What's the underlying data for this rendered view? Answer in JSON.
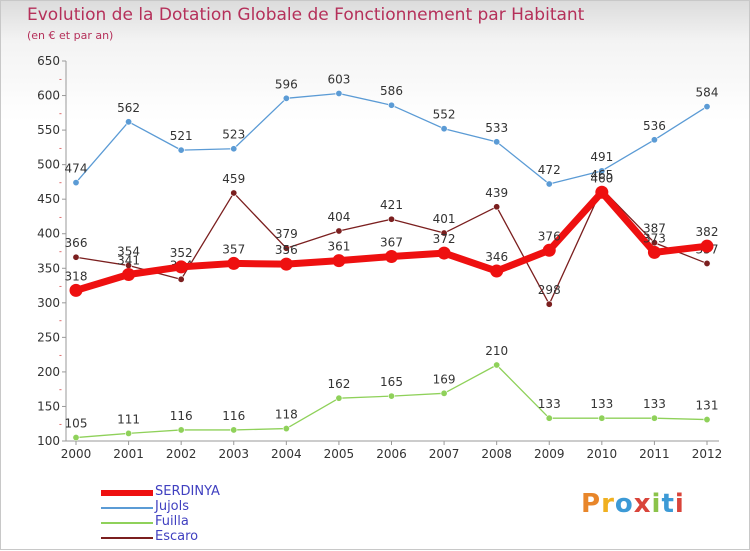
{
  "title": "Evolution de la Dotation Globale de Fonctionnement par Habitant",
  "subtitle": "(en € et par an)",
  "logo": {
    "text": "Proxiti",
    "colors": [
      "#e8862a",
      "#f0b020",
      "#3c9ad6",
      "#d9443a",
      "#8bc34a",
      "#3c9ad6",
      "#d9443a"
    ]
  },
  "chart_data": {
    "type": "line",
    "x": [
      "2000",
      "2001",
      "2002",
      "2003",
      "2004",
      "2005",
      "2006",
      "2007",
      "2008",
      "2009",
      "2010",
      "2011",
      "2012"
    ],
    "ylim": [
      100,
      650
    ],
    "yticks": [
      100,
      150,
      200,
      250,
      300,
      350,
      400,
      450,
      500,
      550,
      600,
      650
    ],
    "grid": false,
    "legend_position": "bottom-left",
    "series": [
      {
        "name": "Jujols",
        "color": "#5b9bd5",
        "values": [
          474,
          562,
          521,
          523,
          596,
          603,
          586,
          552,
          533,
          472,
          491,
          536,
          584
        ],
        "labels": [
          "474",
          "562",
          "521",
          "523",
          "596",
          "603",
          "586",
          "552",
          "533",
          "472",
          "491",
          "536",
          "584"
        ]
      },
      {
        "name": "Escaro",
        "color": "#7b1f1f",
        "values": [
          366,
          354,
          334,
          459,
          379,
          404,
          421,
          401,
          439,
          298,
          465,
          387,
          357
        ],
        "labels": [
          "366",
          "354",
          "334",
          "459",
          "379",
          "404",
          "421",
          "401",
          "439",
          "298",
          "465",
          "387",
          "357"
        ]
      },
      {
        "name": "Fuilla",
        "color": "#8fd15a",
        "values": [
          105,
          111,
          116,
          116,
          118,
          162,
          165,
          169,
          210,
          133,
          133,
          133,
          131
        ],
        "labels": [
          "105",
          "111",
          "116",
          "116",
          "118",
          "162",
          "165",
          "169",
          "210",
          "133",
          "133",
          "133",
          "131"
        ]
      },
      {
        "name": "SERDINYA",
        "color": "#ee1010",
        "values": [
          318,
          341,
          352,
          357,
          356,
          361,
          367,
          372,
          346,
          376,
          460,
          373,
          382
        ],
        "labels": [
          "318",
          "341",
          "352",
          "357",
          "356",
          "361",
          "367",
          "372",
          "346",
          "376",
          "460",
          "373",
          "382"
        ]
      }
    ],
    "legend": [
      {
        "name": "SERDINYA",
        "color": "#ee1010",
        "thickness": 6
      },
      {
        "name": "Jujols",
        "color": "#5b9bd5",
        "thickness": 2
      },
      {
        "name": "Fuilla",
        "color": "#8fd15a",
        "thickness": 2
      },
      {
        "name": "Escaro",
        "color": "#7b1f1f",
        "thickness": 2
      }
    ]
  }
}
